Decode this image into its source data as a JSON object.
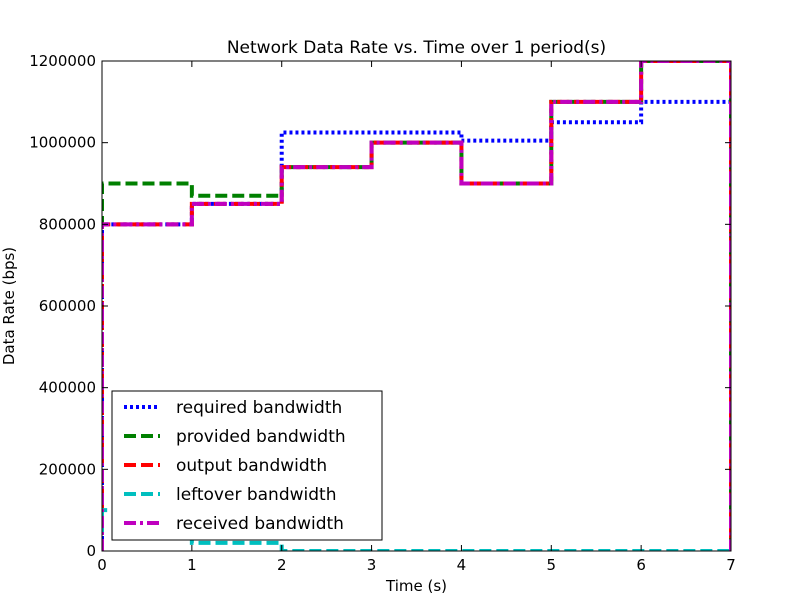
{
  "chart_data": {
    "type": "line",
    "title": "Network Data Rate vs. Time over 1 period(s)",
    "xlabel": "Time (s)",
    "ylabel": "Data Rate (bps)",
    "xlim": [
      0,
      7
    ],
    "ylim": [
      0,
      1200000
    ],
    "x_ticks": [
      "0",
      "1",
      "2",
      "3",
      "4",
      "5",
      "6",
      "7"
    ],
    "y_ticks": [
      "0",
      "200000",
      "400000",
      "600000",
      "800000",
      "1000000",
      "1200000"
    ],
    "grid": false,
    "legend_position": "lower-left",
    "step": "post",
    "x": [
      0,
      1,
      2,
      3,
      4,
      5,
      6,
      7
    ],
    "series": [
      {
        "name": "required bandwidth",
        "color": "#0000ff",
        "style": "dotted",
        "values": [
          800000,
          850000,
          1025000,
          1025000,
          1005000,
          1050000,
          1100000,
          0
        ]
      },
      {
        "name": "provided bandwidth",
        "color": "#008000",
        "style": "dashed",
        "values": [
          900000,
          870000,
          940000,
          1000000,
          900000,
          1100000,
          1200000,
          0
        ]
      },
      {
        "name": "output bandwidth",
        "color": "#ff0000",
        "style": "dashed",
        "values": [
          800000,
          850000,
          940000,
          1000000,
          900000,
          1100000,
          1200000,
          0
        ]
      },
      {
        "name": "leftover bandwidth",
        "color": "#00bfbf",
        "style": "dashed",
        "values": [
          100000,
          20000,
          0,
          0,
          0,
          0,
          0,
          0
        ]
      },
      {
        "name": "received bandwidth",
        "color": "#bf00bf",
        "style": "dashdot",
        "values": [
          800000,
          850000,
          940000,
          1000000,
          900000,
          1100000,
          1200000,
          0
        ]
      }
    ]
  }
}
